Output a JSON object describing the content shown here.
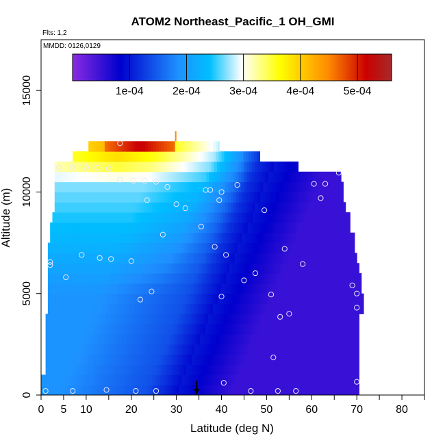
{
  "chart_data": {
    "type": "heatmap",
    "title": "ATOM2 Northeast_Pacific_1 OH_GMI",
    "subtitle_flights": "Flts: 1,2",
    "subtitle_dates": "MMDD: 0126,0129",
    "xlabel": "Latitude (deg N)",
    "ylabel": "Altitude (m)",
    "xlim": [
      0,
      85
    ],
    "ylim": [
      0,
      17500
    ],
    "x_ticks": [
      0,
      5,
      10,
      20,
      30,
      40,
      50,
      60,
      70,
      80
    ],
    "x_tick_labels": [
      "0",
      "5",
      "10",
      "20",
      "30",
      "40",
      "50",
      "60",
      "70",
      "80"
    ],
    "y_ticks": [
      0,
      5000,
      10000,
      15000
    ],
    "y_tick_labels": [
      "0",
      "5000",
      "10000",
      "15000"
    ],
    "colorbar": {
      "range": [
        0,
        0.00056
      ],
      "ticks": [
        0.0001,
        0.0002,
        0.0003,
        0.0004,
        0.0005
      ],
      "tick_labels": [
        "1e-04",
        "2e-04",
        "3e-04",
        "4e-04",
        "5e-04"
      ],
      "colors": [
        "#8a2be2",
        "#0000cd",
        "#1e90ff",
        "#00bfff",
        "#ffffff",
        "#ffff00",
        "#ff8c00",
        "#cc0000",
        "#a52a2a"
      ]
    },
    "altitude_extent": [
      {
        "alt": 250,
        "lat_min": 0,
        "lat_max": 70.5
      },
      {
        "alt": 750,
        "lat_min": 0,
        "lat_max": 70.5
      },
      {
        "alt": 1250,
        "lat_min": 1,
        "lat_max": 70.5
      },
      {
        "alt": 1750,
        "lat_min": 1,
        "lat_max": 70.5
      },
      {
        "alt": 2250,
        "lat_min": 1,
        "lat_max": 70.5
      },
      {
        "alt": 2750,
        "lat_min": 1,
        "lat_max": 70.5
      },
      {
        "alt": 3250,
        "lat_min": 1,
        "lat_max": 70.5
      },
      {
        "alt": 3750,
        "lat_min": 1,
        "lat_max": 70.5
      },
      {
        "alt": 4250,
        "lat_min": 1.5,
        "lat_max": 71.5
      },
      {
        "alt": 4750,
        "lat_min": 1.5,
        "lat_max": 71.5
      },
      {
        "alt": 5250,
        "lat_min": 1.5,
        "lat_max": 71
      },
      {
        "alt": 5750,
        "lat_min": 1.5,
        "lat_max": 71
      },
      {
        "alt": 6250,
        "lat_min": 1.5,
        "lat_max": 70.5
      },
      {
        "alt": 6750,
        "lat_min": 1.5,
        "lat_max": 70
      },
      {
        "alt": 7250,
        "lat_min": 1.5,
        "lat_max": 69.5
      },
      {
        "alt": 7750,
        "lat_min": 2,
        "lat_max": 69.5
      },
      {
        "alt": 8250,
        "lat_min": 2,
        "lat_max": 68.5
      },
      {
        "alt": 8750,
        "lat_min": 2.5,
        "lat_max": 68.5
      },
      {
        "alt": 9250,
        "lat_min": 3,
        "lat_max": 67.5
      },
      {
        "alt": 9750,
        "lat_min": 3,
        "lat_max": 67
      },
      {
        "alt": 10250,
        "lat_min": 3,
        "lat_max": 67
      },
      {
        "alt": 10750,
        "lat_min": 3,
        "lat_max": 66.5
      },
      {
        "alt": 11250,
        "lat_min": 3,
        "lat_max": 57
      },
      {
        "alt": 11750,
        "lat_min": 7,
        "lat_max": 48.5
      },
      {
        "alt": 12250,
        "lat_min": 10.5,
        "lat_max": 39.5
      }
    ],
    "field_description": "OH ~0.5e-04 at low altitude high latitude, ~1.8e-04 mid latitudes, up to ~5.3e-04 at ~12 km near 20N",
    "flight_points": [
      {
        "lat": 1,
        "alt": 200
      },
      {
        "lat": 7,
        "alt": 200
      },
      {
        "lat": 14.5,
        "alt": 250
      },
      {
        "lat": 21,
        "alt": 200
      },
      {
        "lat": 25.5,
        "alt": 200
      },
      {
        "lat": 40.5,
        "alt": 600
      },
      {
        "lat": 46.5,
        "alt": 200
      },
      {
        "lat": 52.5,
        "alt": 200
      },
      {
        "lat": 56.5,
        "alt": 200
      },
      {
        "lat": 70,
        "alt": 650
      },
      {
        "lat": 51.5,
        "alt": 1850
      },
      {
        "lat": 53,
        "alt": 3850
      },
      {
        "lat": 55,
        "alt": 4000
      },
      {
        "lat": 70,
        "alt": 4300
      },
      {
        "lat": 22,
        "alt": 4700
      },
      {
        "lat": 24.5,
        "alt": 5100
      },
      {
        "lat": 40,
        "alt": 4850
      },
      {
        "lat": 51,
        "alt": 4950
      },
      {
        "lat": 69,
        "alt": 5400
      },
      {
        "lat": 70,
        "alt": 5000
      },
      {
        "lat": 5.5,
        "alt": 5800
      },
      {
        "lat": 45,
        "alt": 5650
      },
      {
        "lat": 47.5,
        "alt": 6000
      },
      {
        "lat": 2,
        "alt": 6400
      },
      {
        "lat": 2,
        "alt": 6550
      },
      {
        "lat": 9,
        "alt": 6900
      },
      {
        "lat": 13,
        "alt": 6750
      },
      {
        "lat": 15.5,
        "alt": 6700
      },
      {
        "lat": 20,
        "alt": 6600
      },
      {
        "lat": 41,
        "alt": 6900
      },
      {
        "lat": 54,
        "alt": 7200
      },
      {
        "lat": 58,
        "alt": 6450
      },
      {
        "lat": 38.5,
        "alt": 7300
      },
      {
        "lat": 27,
        "alt": 7900
      },
      {
        "lat": 35.5,
        "alt": 8300
      },
      {
        "lat": 49.5,
        "alt": 9100
      },
      {
        "lat": 23.5,
        "alt": 9600
      },
      {
        "lat": 30,
        "alt": 9400
      },
      {
        "lat": 32,
        "alt": 9200
      },
      {
        "lat": 39.5,
        "alt": 9600
      },
      {
        "lat": 36.5,
        "alt": 10100
      },
      {
        "lat": 37.5,
        "alt": 10100
      },
      {
        "lat": 40,
        "alt": 10000
      },
      {
        "lat": 43.5,
        "alt": 10350
      },
      {
        "lat": 17.5,
        "alt": 10600
      },
      {
        "lat": 20.5,
        "alt": 10550
      },
      {
        "lat": 23,
        "alt": 10550
      },
      {
        "lat": 25.5,
        "alt": 10500
      },
      {
        "lat": 28,
        "alt": 10250
      },
      {
        "lat": 60.5,
        "alt": 10400
      },
      {
        "lat": 63,
        "alt": 10400
      },
      {
        "lat": 62,
        "alt": 9700
      },
      {
        "lat": 66,
        "alt": 10950
      },
      {
        "lat": 4,
        "alt": 11200
      },
      {
        "lat": 7,
        "alt": 11200
      },
      {
        "lat": 10,
        "alt": 11200
      },
      {
        "lat": 12.5,
        "alt": 11200
      },
      {
        "lat": 15,
        "alt": 11150
      },
      {
        "lat": 17.5,
        "alt": 12400
      }
    ],
    "marker_arrow_lat": 34.5
  }
}
